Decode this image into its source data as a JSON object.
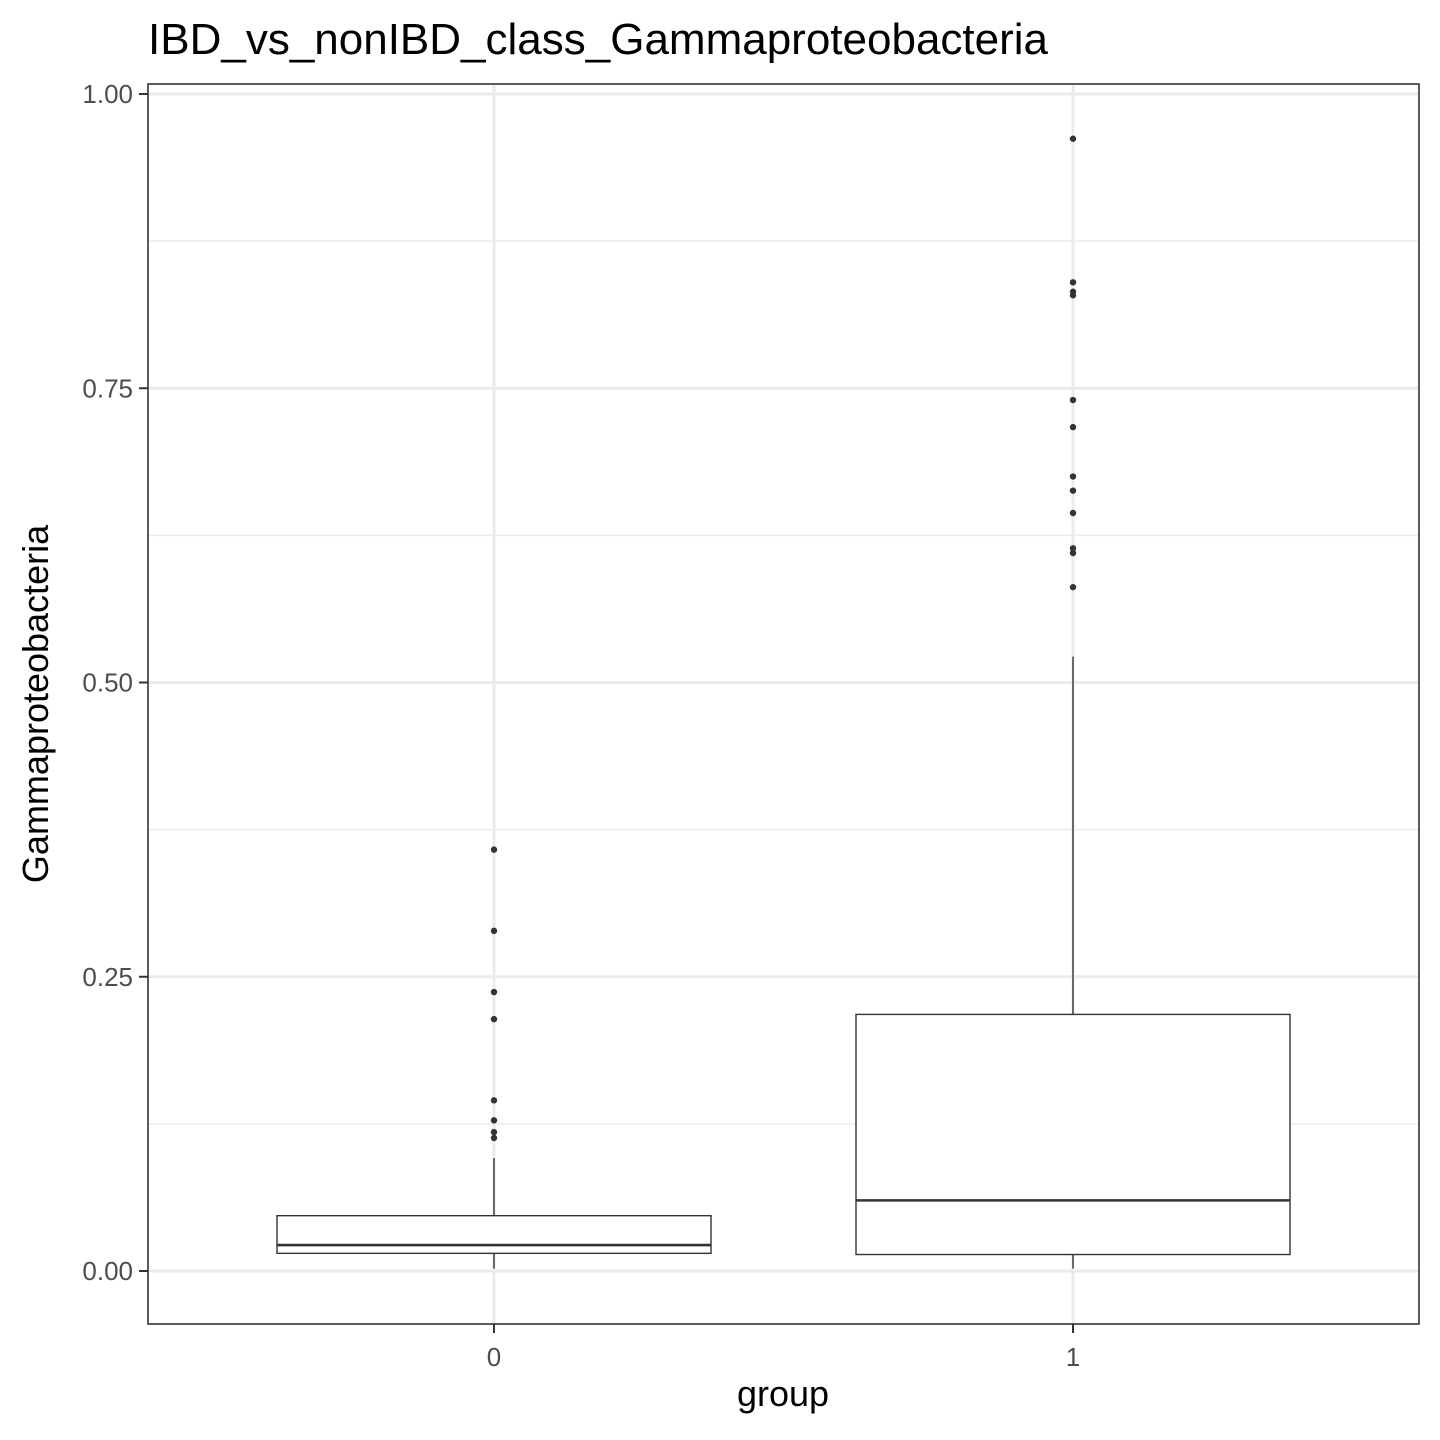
{
  "chart_data": {
    "type": "box",
    "title": "IBD_vs_nonIBD_class_Gammaproteobacteria",
    "xlabel": "group",
    "ylabel": "Gammaproteobacteria",
    "ylim": [
      -0.045,
      1.005
    ],
    "yticks": [
      0.0,
      0.25,
      0.5,
      0.75,
      1.0
    ],
    "ytick_labels": [
      "0.00",
      "0.25",
      "0.50",
      "0.75",
      "1.00"
    ],
    "grid": true,
    "categories": [
      "0",
      "1"
    ],
    "groups": [
      {
        "category": "0",
        "min": 0.002,
        "q1": 0.015,
        "median": 0.022,
        "q3": 0.047,
        "max": 0.096,
        "outliers": [
          0.358,
          0.289,
          0.237,
          0.214,
          0.145,
          0.128,
          0.118,
          0.113
        ]
      },
      {
        "category": "1",
        "min": 0.002,
        "q1": 0.014,
        "median": 0.06,
        "q3": 0.218,
        "max": 0.522,
        "outliers": [
          0.962,
          0.84,
          0.832,
          0.829,
          0.74,
          0.717,
          0.675,
          0.663,
          0.644,
          0.614,
          0.61,
          0.581
        ]
      }
    ]
  }
}
